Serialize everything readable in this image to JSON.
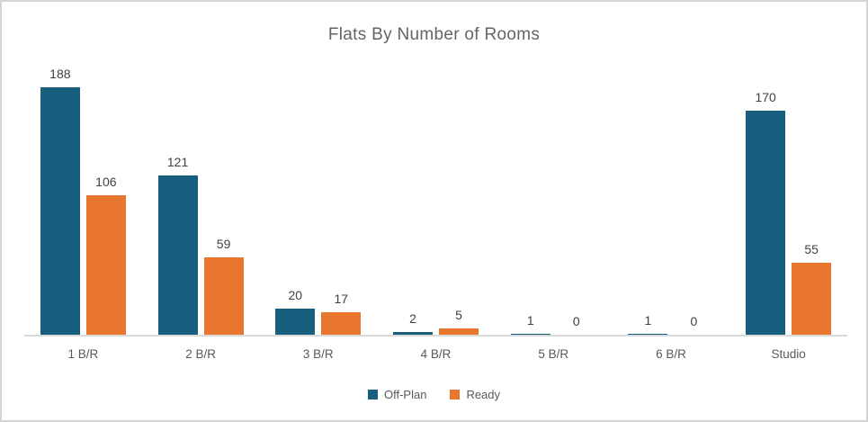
{
  "chart_data": {
    "type": "bar",
    "title": "Flats By Number of Rooms",
    "categories": [
      "1 B/R",
      "2 B/R",
      "3 B/R",
      "4 B/R",
      "5 B/R",
      "6 B/R",
      "Studio"
    ],
    "series": [
      {
        "name": "Off-Plan",
        "color": "#185E7E",
        "values": [
          188,
          121,
          20,
          2,
          1,
          1,
          170
        ]
      },
      {
        "name": "Ready",
        "color": "#E8762F",
        "values": [
          106,
          59,
          17,
          5,
          0,
          0,
          55
        ]
      }
    ],
    "data_labels": true,
    "grid": false,
    "y_axis_visible": false,
    "legend_position": "bottom",
    "ylim": [
      0,
      200
    ],
    "colors": {
      "axis_line": "#D9D9D9",
      "frame_border": "#D4D4D4",
      "title_text": "#646464",
      "data_label_text": "#404040",
      "category_text": "#595959"
    }
  }
}
